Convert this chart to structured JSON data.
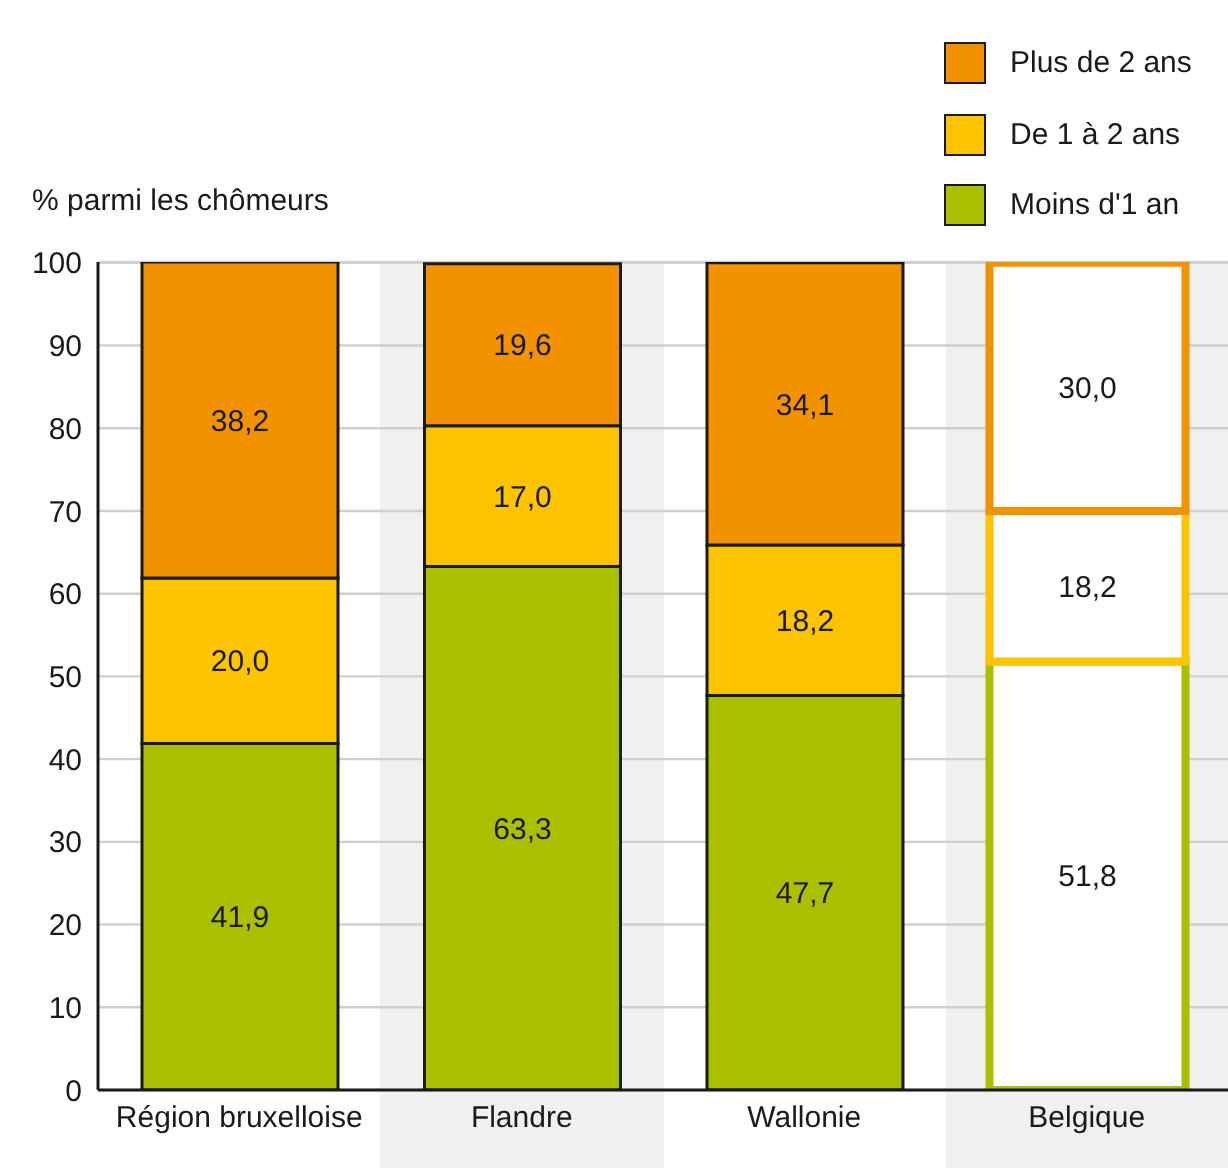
{
  "chart_data": {
    "type": "bar",
    "stacked": true,
    "ylabel": "% parmi les chômeurs",
    "categories": [
      "Région bruxelloise",
      "Flandre",
      "Wallonie",
      "Belgique"
    ],
    "series": [
      {
        "name": "Moins d'1 an",
        "color": "#aabf00",
        "colors": [
          "#aabf00",
          "#aabf00",
          "#aabf00",
          "#ffffff"
        ],
        "values": [
          41.9,
          63.3,
          47.7,
          51.8
        ],
        "value_labels": [
          "41,9",
          "63,3",
          "47,7",
          "51,8"
        ]
      },
      {
        "name": "De 1 à 2 ans",
        "color": "#fbc300",
        "colors": [
          "#fbc300",
          "#fbc300",
          "#fbc300",
          "#ffffff"
        ],
        "values": [
          20.0,
          17.0,
          18.2,
          18.2
        ],
        "value_labels": [
          "20,0",
          "17,0",
          "18,2",
          "18,2"
        ]
      },
      {
        "name": "Plus de 2 ans",
        "color": "#f39200",
        "colors": [
          "#f39200",
          "#f39200",
          "#f39200",
          "#ffffff"
        ],
        "values": [
          38.2,
          19.6,
          34.1,
          30.0
        ],
        "value_labels": [
          "38,2",
          "19,6",
          "34,1",
          "30,0"
        ]
      }
    ],
    "ylim": [
      0,
      100.1
    ],
    "yticks": [
      0,
      10,
      20,
      30,
      40,
      50,
      60,
      70,
      80,
      90,
      100
    ],
    "grid": "y",
    "legend": "top right"
  }
}
